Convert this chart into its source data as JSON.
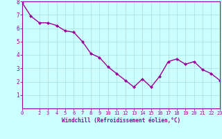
{
  "x": [
    0,
    1,
    2,
    3,
    4,
    5,
    6,
    7,
    8,
    9,
    10,
    11,
    12,
    13,
    14,
    15,
    16,
    17,
    18,
    19,
    20,
    21,
    22,
    23
  ],
  "y": [
    7.9,
    6.9,
    6.4,
    6.4,
    6.2,
    5.8,
    5.7,
    5.0,
    4.1,
    3.8,
    3.1,
    2.6,
    2.1,
    1.6,
    2.2,
    1.6,
    2.4,
    3.5,
    3.7,
    3.3,
    3.5,
    2.9,
    2.6,
    2.1
  ],
  "line_color": "#990099",
  "marker": "D",
  "marker_size": 2,
  "bg_color": "#ccffff",
  "grid_color": "#aadddd",
  "xlabel": "Windchill (Refroidissement éolien,°C)",
  "xlabel_color": "#990099",
  "tick_color": "#990099",
  "spine_color": "#990099",
  "ylim": [
    0,
    8
  ],
  "xlim": [
    0,
    23
  ],
  "yticks": [
    1,
    2,
    3,
    4,
    5,
    6,
    7,
    8
  ],
  "xticks": [
    0,
    2,
    3,
    4,
    5,
    6,
    7,
    8,
    9,
    10,
    11,
    12,
    13,
    14,
    15,
    16,
    17,
    18,
    19,
    20,
    21,
    22,
    23
  ],
  "linewidth": 1.0,
  "tick_fontsize": 5.0,
  "xlabel_fontsize": 5.5
}
